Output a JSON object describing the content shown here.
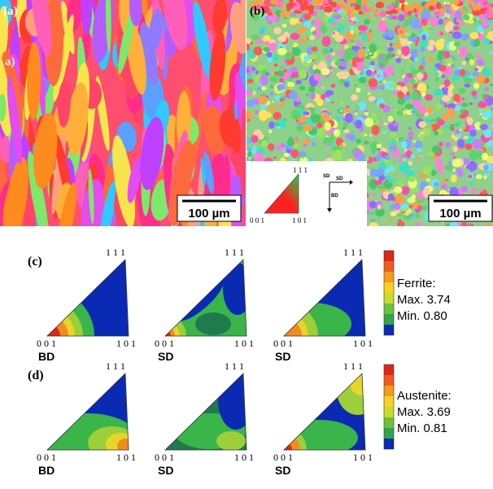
{
  "panel_a": {
    "label": "(a)",
    "stray_label": "a)",
    "scale_bar": "100 µm",
    "palette": [
      "#ff3b2f",
      "#ff2d8a",
      "#ff8a1e",
      "#ffb03a",
      "#e24cf0",
      "#b45cff",
      "#8f7bff",
      "#5aa0ff",
      "#30c8ff",
      "#ff5fb8",
      "#ff6a3d",
      "#f7e64b",
      "#7de86a",
      "#ff4466",
      "#c040ff",
      "#ff9f80"
    ]
  },
  "panel_b": {
    "label": "(b)",
    "scale_bar": "100 µm",
    "legend_triangle": {
      "top": "1 1 1",
      "left": "0 0 1",
      "right": "1 0 1"
    },
    "axes_labels": [
      "SD",
      "SD",
      "BD"
    ],
    "palette": [
      "#5fd36a",
      "#9be35a",
      "#ffe35c",
      "#ff9e4a",
      "#ff5a5a",
      "#ff7ed8",
      "#c77dff",
      "#7aa6ff",
      "#6ce6ff",
      "#46c86a",
      "#ffd0a0",
      "#e9ff7a",
      "#ff4fa3",
      "#8f6bff",
      "#3fe0c0"
    ]
  },
  "rows": [
    {
      "label": "(c)",
      "legend": {
        "title": "Ferrite:",
        "max": "Max. 3.74",
        "min": "Min. 0.80"
      },
      "triangles": [
        {
          "top": "1 1 1",
          "left": "0 0 1",
          "right": "1 0 1",
          "direction": "BD",
          "variant": "c1"
        },
        {
          "top": "1 1 1",
          "left": "0 0 1",
          "right": "1 0 1",
          "direction": "SD",
          "variant": "c2"
        },
        {
          "top": "1 1 1",
          "left": "0 0 1",
          "right": "1 0 1",
          "direction": "SD",
          "variant": "c3"
        }
      ]
    },
    {
      "label": "(d)",
      "legend": {
        "title": "Austenite:",
        "max": "Max. 3.69",
        "min": "Min. 0.81"
      },
      "triangles": [
        {
          "top": "1 1 1",
          "left": "0 0 1",
          "right": "1 0 1",
          "direction": "BD",
          "variant": "d1"
        },
        {
          "top": "1 1 1",
          "left": "0 0 1",
          "right": "1 0 1",
          "direction": "SD",
          "variant": "d2"
        },
        {
          "top": "1 1 1",
          "left": "0 0 1",
          "right": "1 0 1",
          "direction": "SD",
          "variant": "d3"
        }
      ]
    }
  ],
  "colors": {
    "bar_scale": [
      "#e0261c",
      "#f25a1a",
      "#f89a1c",
      "#f7d21e",
      "#c8dc2a",
      "#6ec23a",
      "#2ea64a",
      "#0a2ab4"
    ],
    "ipf_blue": "#0a2ab4",
    "ipf_green": "#39b54a",
    "ipf_lime": "#9ccf3a",
    "ipf_yellow": "#e8d52a",
    "ipf_orange": "#f28c1e",
    "ipf_red": "#e0261c",
    "ipf_dark_green": "#1f7a4e"
  }
}
